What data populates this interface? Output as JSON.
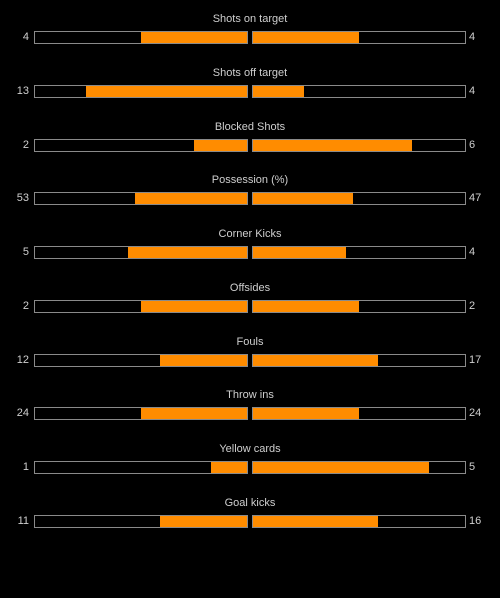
{
  "bar_color": "#ff8c00",
  "stats": [
    {
      "label": "Shots on target",
      "home": "4",
      "away": "4",
      "home_fill": 0.5,
      "away_fill": 0.5
    },
    {
      "label": "Shots off target",
      "home": "13",
      "away": "4",
      "home_fill": 0.76,
      "away_fill": 0.24
    },
    {
      "label": "Blocked Shots",
      "home": "2",
      "away": "6",
      "home_fill": 0.25,
      "away_fill": 0.75
    },
    {
      "label": "Possession (%)",
      "home": "53",
      "away": "47",
      "home_fill": 0.53,
      "away_fill": 0.47
    },
    {
      "label": "Corner Kicks",
      "home": "5",
      "away": "4",
      "home_fill": 0.56,
      "away_fill": 0.44
    },
    {
      "label": "Offsides",
      "home": "2",
      "away": "2",
      "home_fill": 0.5,
      "away_fill": 0.5
    },
    {
      "label": "Fouls",
      "home": "12",
      "away": "17",
      "home_fill": 0.41,
      "away_fill": 0.59
    },
    {
      "label": "Throw ins",
      "home": "24",
      "away": "24",
      "home_fill": 0.5,
      "away_fill": 0.5
    },
    {
      "label": "Yellow cards",
      "home": "1",
      "away": "5",
      "home_fill": 0.17,
      "away_fill": 0.83
    },
    {
      "label": "Goal kicks",
      "home": "11",
      "away": "16",
      "home_fill": 0.41,
      "away_fill": 0.59
    }
  ]
}
